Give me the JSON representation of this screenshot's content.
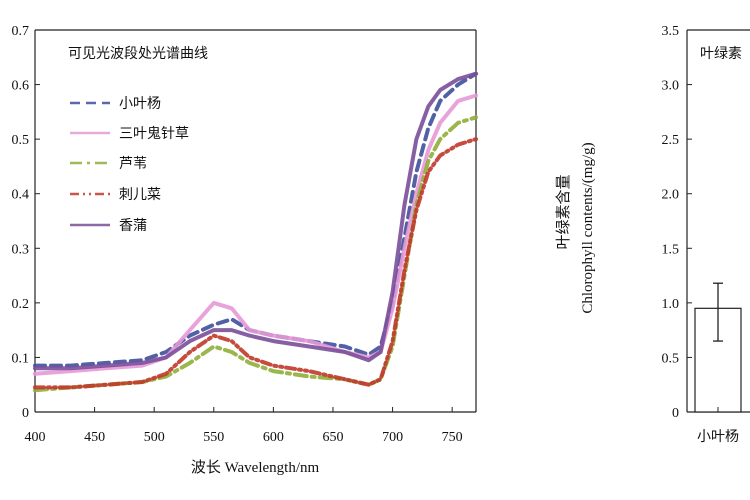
{
  "chart_data": [
    {
      "type": "line",
      "title": "可见光波段处光谱曲线",
      "xlabel": "波长 Wavelength/nm",
      "ylabel": "",
      "xlim": [
        400,
        770
      ],
      "ylim": [
        0,
        0.7
      ],
      "xticks": [
        "400",
        "450",
        "500",
        "550",
        "600",
        "650",
        "700",
        "750"
      ],
      "yticks": [
        "0",
        "0.1",
        "0.2",
        "0.3",
        "0.4",
        "0.5",
        "0.6",
        "0.7"
      ],
      "grid": false,
      "legend": "top-left",
      "x": [
        400,
        430,
        460,
        490,
        510,
        530,
        550,
        565,
        580,
        600,
        630,
        660,
        680,
        690,
        700,
        710,
        720,
        730,
        740,
        755,
        770
      ],
      "series": [
        {
          "name": "小叶杨",
          "color": "#3f4f9c",
          "line_style": "dashed",
          "values": [
            0.085,
            0.085,
            0.09,
            0.095,
            0.11,
            0.14,
            0.16,
            0.17,
            0.15,
            0.14,
            0.13,
            0.12,
            0.105,
            0.12,
            0.2,
            0.32,
            0.44,
            0.52,
            0.57,
            0.6,
            0.62
          ]
        },
        {
          "name": "三叶鬼针草",
          "color": "#e59ad6",
          "line_style": "solid",
          "values": [
            0.07,
            0.075,
            0.08,
            0.085,
            0.1,
            0.15,
            0.2,
            0.19,
            0.15,
            0.14,
            0.13,
            0.11,
            0.1,
            0.11,
            0.19,
            0.3,
            0.4,
            0.48,
            0.53,
            0.57,
            0.58
          ]
        },
        {
          "name": "芦苇",
          "color": "#8fae3a",
          "line_style": "dash-dot",
          "values": [
            0.04,
            0.045,
            0.05,
            0.055,
            0.065,
            0.09,
            0.12,
            0.11,
            0.09,
            0.075,
            0.065,
            0.06,
            0.05,
            0.06,
            0.12,
            0.25,
            0.38,
            0.46,
            0.5,
            0.53,
            0.54
          ]
        },
        {
          "name": "刺儿菜",
          "color": "#c0392b",
          "line_style": "dash-dot-dot",
          "values": [
            0.045,
            0.045,
            0.05,
            0.055,
            0.07,
            0.11,
            0.14,
            0.13,
            0.1,
            0.085,
            0.075,
            0.06,
            0.05,
            0.06,
            0.13,
            0.26,
            0.37,
            0.44,
            0.47,
            0.49,
            0.5
          ]
        },
        {
          "name": "香蒲",
          "color": "#7a4f9a",
          "line_style": "solid",
          "values": [
            0.08,
            0.08,
            0.085,
            0.09,
            0.1,
            0.13,
            0.15,
            0.15,
            0.14,
            0.13,
            0.12,
            0.11,
            0.095,
            0.11,
            0.22,
            0.38,
            0.5,
            0.56,
            0.59,
            0.61,
            0.62
          ]
        }
      ]
    },
    {
      "type": "bar",
      "title": "叶绿素",
      "ylabel_lines": [
        "叶绿素含量",
        "Chlorophyll contents/(mg/g)"
      ],
      "ylim": [
        0,
        3.5
      ],
      "yticks": [
        "0",
        "0.5",
        "1.0",
        "1.5",
        "2.0",
        "2.5",
        "3.0",
        "3.5"
      ],
      "grid": false,
      "categories": [
        "小叶杨"
      ],
      "values": [
        0.95
      ],
      "error_bars": [
        [
          0.65,
          1.18
        ]
      ],
      "bar_color": "#ffffff"
    }
  ]
}
